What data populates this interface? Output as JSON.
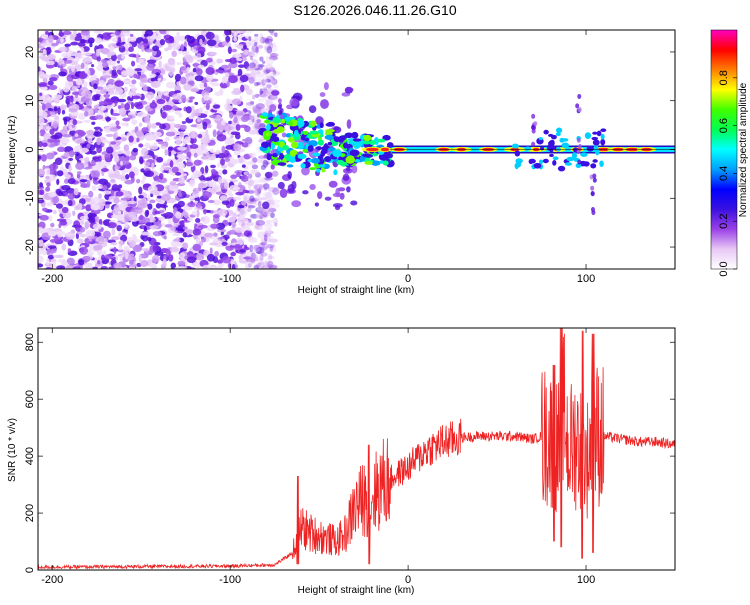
{
  "title": "S126.2026.046.11.26.G10",
  "chart_data": [
    {
      "type": "heatmap",
      "xlabel": "Height of straight line (km)",
      "ylabel": "Frequency (Hz)",
      "xlim": [
        -208,
        150
      ],
      "ylim": [
        -24.5,
        24.5
      ],
      "x_ticks": [
        -200,
        -100,
        0,
        100
      ],
      "x_tick_labels": [
        "-200",
        "-100",
        "0",
        "100"
      ],
      "y_ticks": [
        -20,
        -10,
        0,
        10,
        20
      ],
      "y_tick_labels": [
        "-20",
        "-10",
        "0",
        "10",
        "20"
      ],
      "noise_region_end_km": -80,
      "signal_frequency_hz": 0,
      "signal_start_km": -82,
      "colorbar": {
        "label": "Normalized spectral amplitude",
        "range": [
          0,
          1
        ],
        "ticks": [
          0.0,
          0.2,
          0.4,
          0.6,
          0.8
        ],
        "tick_labels": [
          "0.0",
          "0.2",
          "0.4",
          "0.6",
          "0.8"
        ],
        "colors": [
          "#ffffff",
          "#e8c8f5",
          "#9a40e8",
          "#3a10e0",
          "#0000ff",
          "#00a0ff",
          "#00ffff",
          "#00ff50",
          "#40ff00",
          "#ffff00",
          "#ff8000",
          "#ff0000",
          "#ff00c0"
        ]
      }
    },
    {
      "type": "line",
      "xlabel": "Height of straight line (km)",
      "ylabel": "SNR (10 * v/v)",
      "xlim": [
        -208,
        150
      ],
      "ylim": [
        0,
        850
      ],
      "x_ticks": [
        -200,
        -100,
        0,
        100
      ],
      "x_tick_labels": [
        "-200",
        "-100",
        "0",
        "100"
      ],
      "y_ticks": [
        0,
        200,
        400,
        600,
        800
      ],
      "y_tick_labels": [
        "0",
        "200",
        "400",
        "600",
        "800"
      ],
      "series": [
        {
          "name": "SNR",
          "color": "#ee2222",
          "x": [
            -208,
            -150,
            -100,
            -75,
            -65,
            -60,
            -55,
            -50,
            -45,
            -40,
            -35,
            -30,
            -25,
            -20,
            -15,
            -10,
            -5,
            0,
            10,
            20,
            30,
            40,
            50,
            60,
            70,
            75,
            80,
            82,
            85,
            88,
            90,
            95,
            100,
            105,
            110,
            120,
            130,
            140,
            150
          ],
          "y": [
            10,
            12,
            14,
            18,
            60,
            150,
            130,
            120,
            110,
            100,
            130,
            220,
            250,
            260,
            300,
            320,
            340,
            360,
            420,
            450,
            465,
            470,
            470,
            470,
            460,
            470,
            460,
            450,
            430,
            560,
            420,
            460,
            380,
            480,
            470,
            460,
            450,
            450,
            440
          ],
          "spikes": [
            {
              "x": -62,
              "min": 20,
              "max": 330
            },
            {
              "x": -22,
              "min": 20,
              "max": 440
            },
            {
              "x": 82,
              "min": 100,
              "max": 720
            },
            {
              "x": 86,
              "min": 80,
              "max": 850
            },
            {
              "x": 98,
              "min": 40,
              "max": 840
            },
            {
              "x": 104,
              "min": 60,
              "max": 830
            }
          ]
        }
      ]
    }
  ]
}
